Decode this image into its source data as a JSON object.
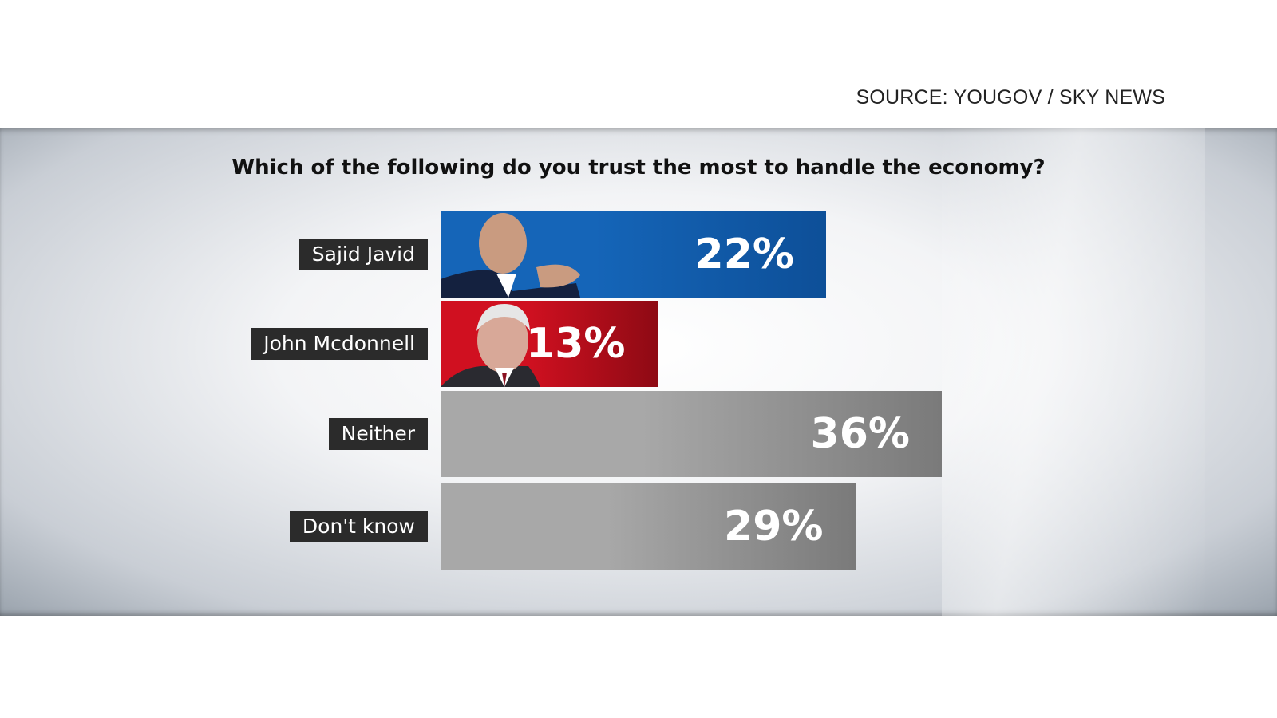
{
  "source": "SOURCE: YOUGOV / SKY NEWS",
  "chart_data": {
    "type": "bar",
    "orientation": "horizontal",
    "title": "Which of the following do you trust the most to handle the economy?",
    "categories": [
      "Sajid Javid",
      "John Mcdonnell",
      "Neither",
      "Don't know"
    ],
    "values": [
      22,
      13,
      36,
      29
    ],
    "data_labels": [
      "22%",
      "13%",
      "36%",
      "29%"
    ],
    "colors": [
      "#1565b8",
      "#c8101e",
      "#8a8a8a",
      "#8a8a8a"
    ],
    "grid": false,
    "unit": "%"
  }
}
